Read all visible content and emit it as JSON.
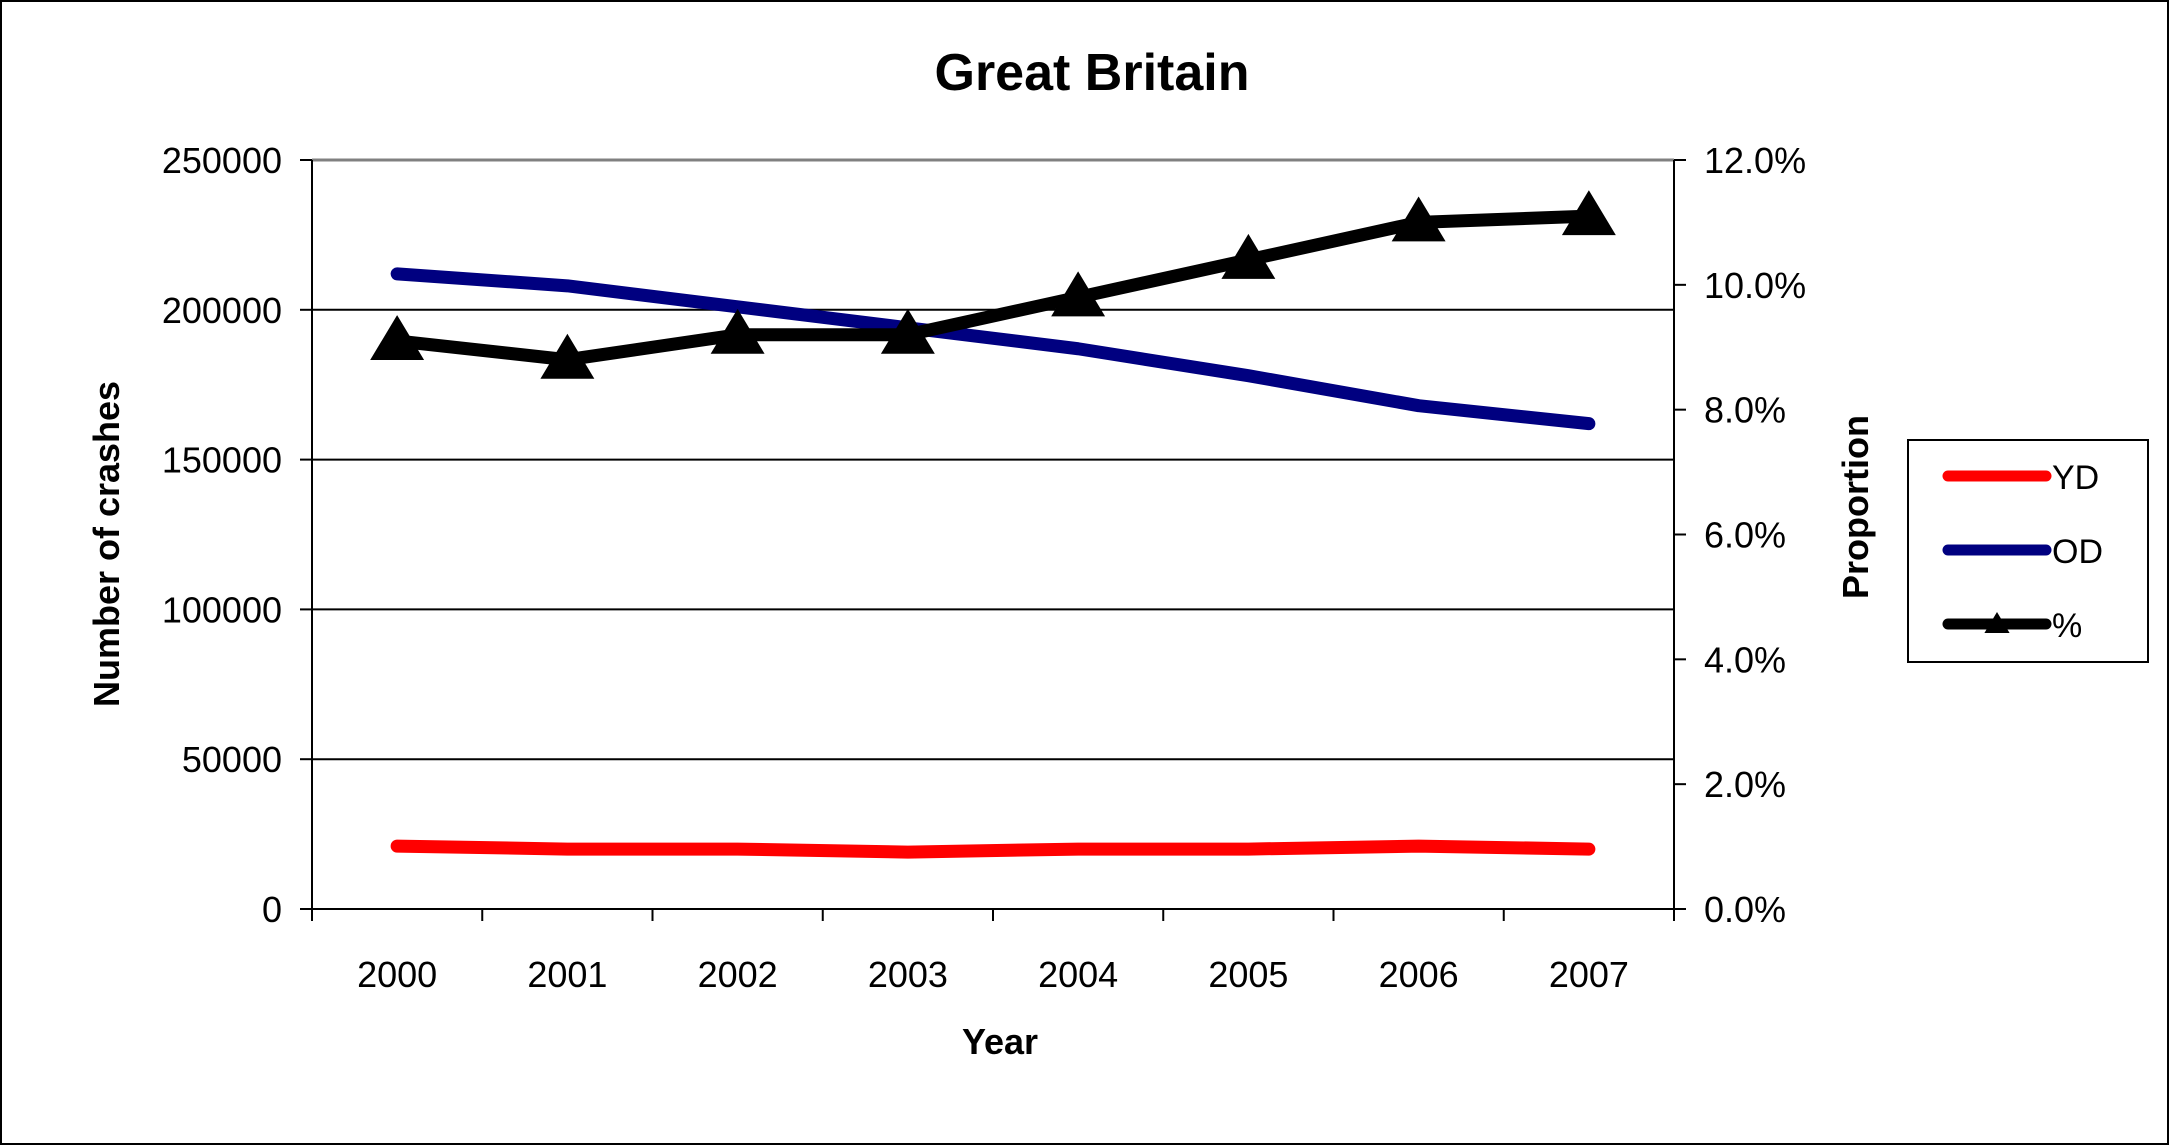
{
  "chart_data": {
    "type": "line",
    "title": "Great Britain",
    "xlabel": "Year",
    "ylabel": "Number of crashes",
    "y2label": "Proportion",
    "categories": [
      "2000",
      "2001",
      "2002",
      "2003",
      "2004",
      "2005",
      "2006",
      "2007"
    ],
    "ylim": [
      0,
      250000
    ],
    "y_ticks": [
      "0",
      "50000",
      "100000",
      "150000",
      "200000",
      "250000"
    ],
    "y2lim": [
      0,
      0.12
    ],
    "y2_ticks": [
      "0.0%",
      "2.0%",
      "4.0%",
      "6.0%",
      "8.0%",
      "10.0%",
      "12.0%"
    ],
    "grid": true,
    "legend_position": "right",
    "series": [
      {
        "name": "YD",
        "axis": "left",
        "color": "#ff0000",
        "marker": "none",
        "values": [
          21000,
          20000,
          20000,
          19000,
          20000,
          20000,
          21000,
          20000
        ]
      },
      {
        "name": "OD",
        "axis": "left",
        "color": "#000080",
        "marker": "none",
        "values": [
          212000,
          208000,
          201000,
          194000,
          187000,
          178000,
          168000,
          162000
        ]
      },
      {
        "name": "%",
        "axis": "right",
        "color": "#000000",
        "marker": "triangle",
        "values": [
          0.091,
          0.088,
          0.092,
          0.092,
          0.098,
          0.104,
          0.11,
          0.111
        ]
      }
    ]
  }
}
